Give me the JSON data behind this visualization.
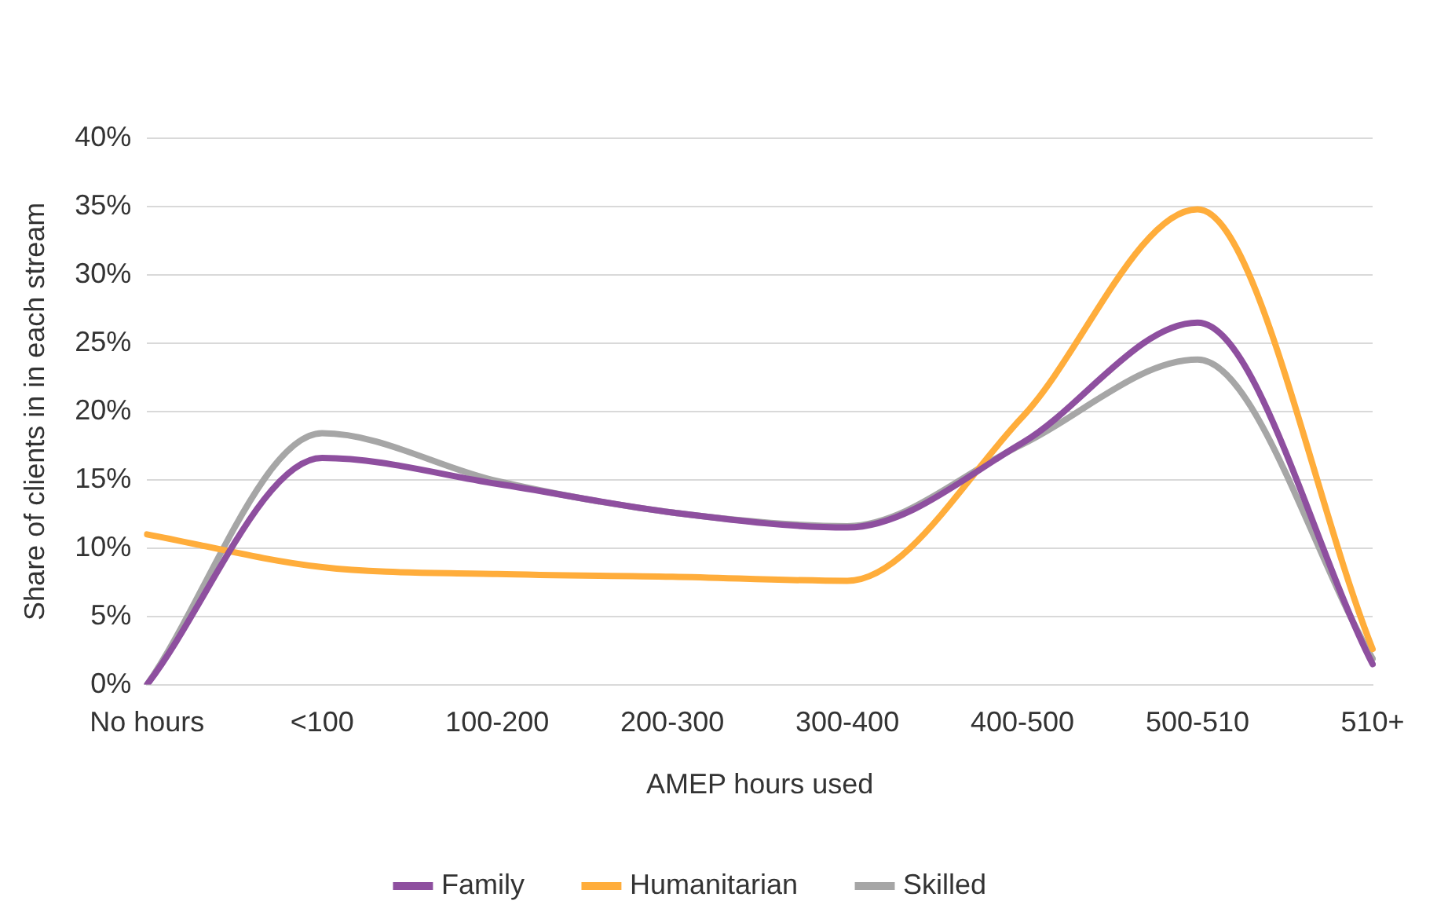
{
  "chart_data": {
    "type": "line",
    "xlabel": "AMEP hours used",
    "ylabel": "Share of clients in in each stream",
    "categories": [
      "No hours",
      "<100",
      "100-200",
      "200-300",
      "300-400",
      "400-500",
      "500-510",
      "510+"
    ],
    "series": [
      {
        "name": "Family",
        "color": "#8e4f9f",
        "values": [
          0,
          16.6,
          14.7,
          12.6,
          11.5,
          17.7,
          26.5,
          1.5
        ]
      },
      {
        "name": "Humanitarian",
        "color": "#ffad3b",
        "values": [
          11.0,
          8.6,
          8.1,
          7.9,
          7.6,
          19.6,
          34.8,
          2.6
        ]
      },
      {
        "name": "Skilled",
        "color": "#a6a6a6",
        "values": [
          0,
          18.4,
          14.9,
          12.6,
          11.6,
          17.6,
          23.8,
          1.9
        ]
      }
    ],
    "ylim": [
      0,
      40
    ],
    "yticks": [
      {
        "value": 0,
        "label": "0%"
      },
      {
        "value": 5,
        "label": "5%"
      },
      {
        "value": 10,
        "label": "10%"
      },
      {
        "value": 15,
        "label": "15%"
      },
      {
        "value": 20,
        "label": "20%"
      },
      {
        "value": 25,
        "label": "25%"
      },
      {
        "value": 30,
        "label": "30%"
      },
      {
        "value": 35,
        "label": "35%"
      },
      {
        "value": 40,
        "label": "40%"
      }
    ],
    "grid": "y",
    "legend": "bottom",
    "marker": "none",
    "line_style": "solid"
  }
}
